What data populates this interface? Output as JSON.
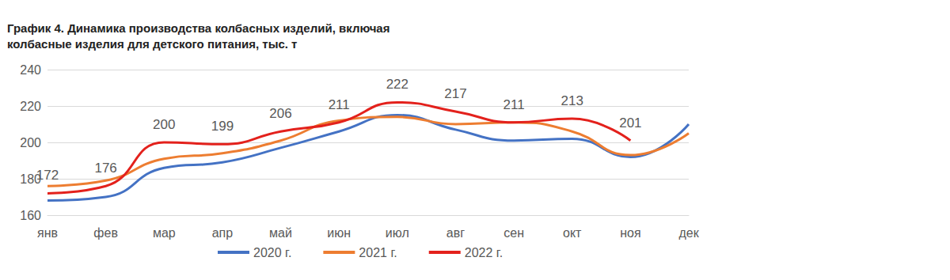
{
  "chart_data": {
    "type": "line",
    "title": "График 4. Динамика производства колбасных изделий, включая колбасные изделия для детского питания, тыс. т",
    "categories": [
      "янв",
      "фев",
      "мар",
      "апр",
      "май",
      "июн",
      "июл",
      "авг",
      "сен",
      "окт",
      "ноя",
      "дек"
    ],
    "series": [
      {
        "name": "2020 г.",
        "color": "#4472c4",
        "values": [
          168,
          170,
          186,
          189,
          197,
          206,
          215,
          207,
          201,
          202,
          192,
          210
        ]
      },
      {
        "name": "2021 г.",
        "color": "#ed7d31",
        "values": [
          176,
          179,
          191,
          194,
          201,
          212,
          214,
          210,
          211,
          206,
          193,
          205
        ]
      },
      {
        "name": "2022 г.",
        "color": "#e3211c",
        "values": [
          172,
          176,
          200,
          199,
          206,
          211,
          222,
          217,
          211,
          213,
          201,
          null
        ],
        "data_labels": true
      }
    ],
    "ylim": [
      160,
      240
    ],
    "yticks": [
      160,
      180,
      200,
      220,
      240
    ],
    "grid": true,
    "legend": "bottom"
  }
}
